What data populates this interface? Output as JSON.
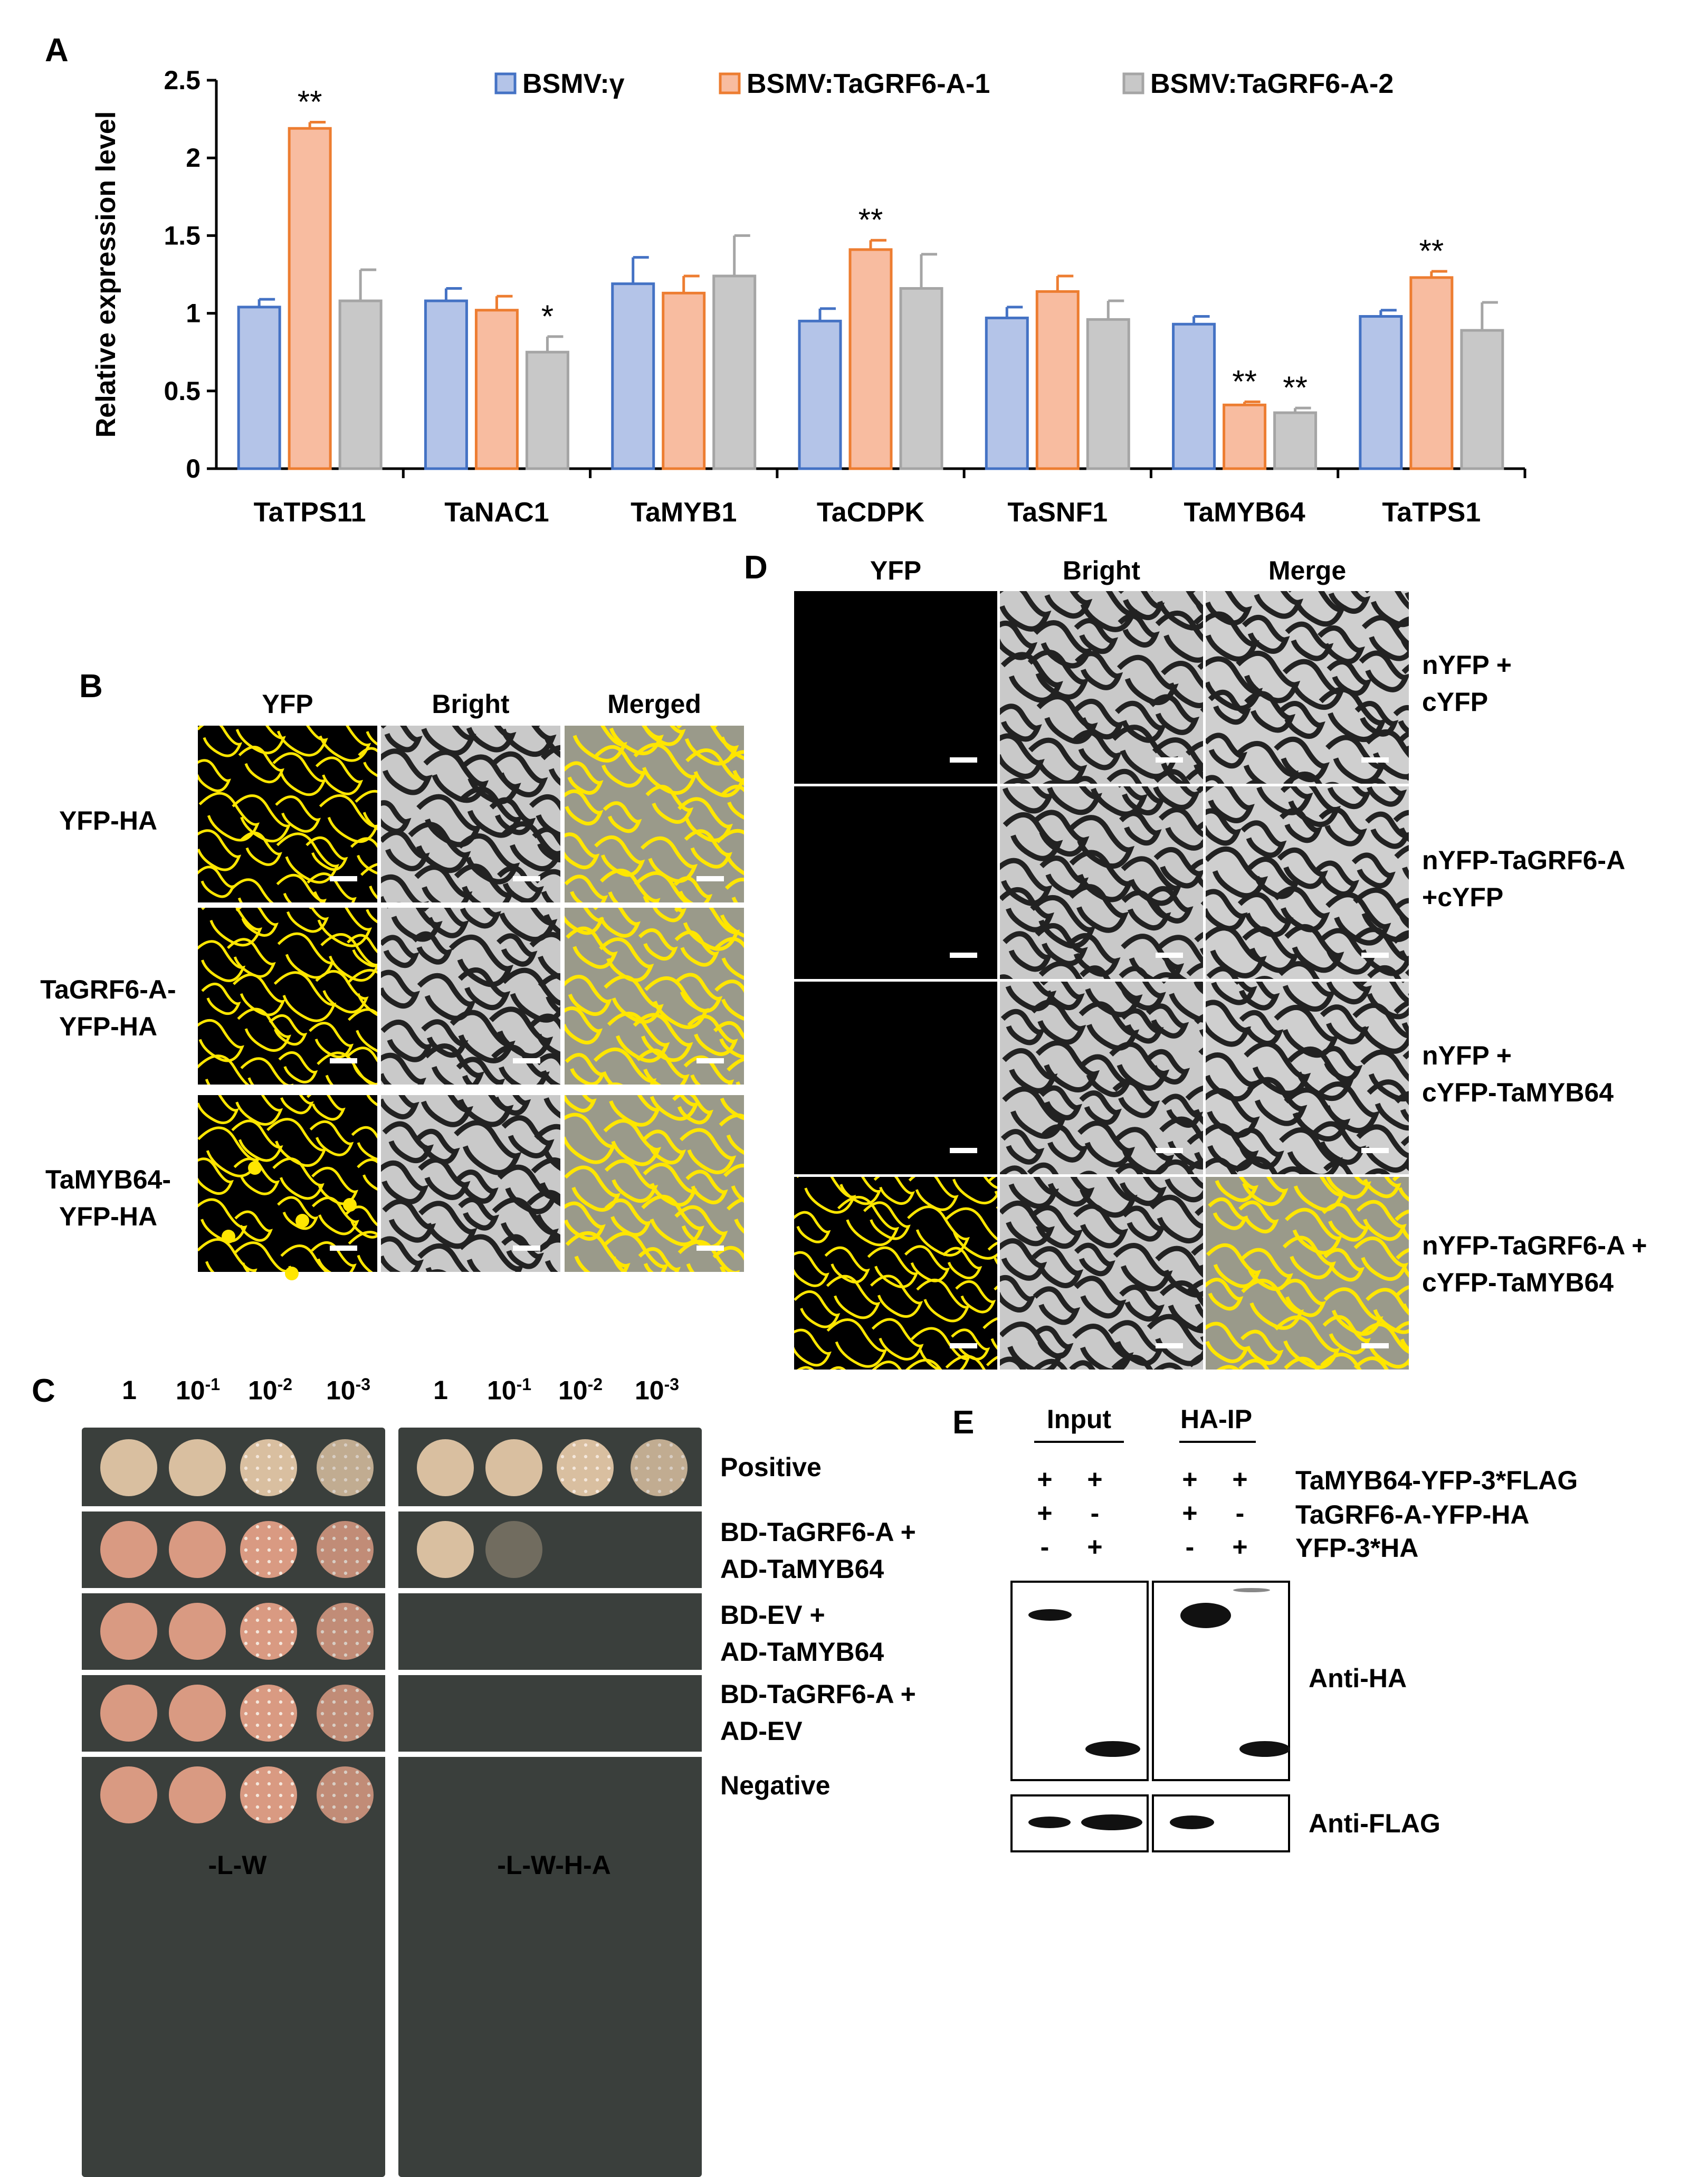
{
  "panels": {
    "A": "A",
    "B": "B",
    "C": "C",
    "D": "D",
    "E": "E"
  },
  "chart_data": {
    "type": "bar",
    "title": "",
    "xlabel": "",
    "ylabel": "Relative expression level",
    "ylim": [
      0,
      2.5
    ],
    "yticks": [
      "0",
      "0.5",
      "1",
      "1.5",
      "2",
      "2.5"
    ],
    "categories": [
      "TaTPS11",
      "TaNAC1",
      "TaMYB1",
      "TaCDPK",
      "TaSNF1",
      "TaMYB64",
      "TaTPS1"
    ],
    "series": [
      {
        "name": "BSMV:γ",
        "color": "#4472c4",
        "fill": "#b4c4e8",
        "values": [
          1.04,
          1.08,
          1.19,
          0.95,
          0.97,
          0.93,
          0.98
        ],
        "errors": [
          0.05,
          0.08,
          0.17,
          0.08,
          0.07,
          0.05,
          0.04
        ],
        "significance": [
          "",
          "",
          "",
          "",
          "",
          "",
          ""
        ]
      },
      {
        "name": "BSMV:TaGRF6-A-1",
        "color": "#ed7d31",
        "fill": "#f8bca0",
        "values": [
          2.19,
          1.02,
          1.13,
          1.41,
          1.14,
          0.41,
          1.23
        ],
        "errors": [
          0.04,
          0.09,
          0.11,
          0.06,
          0.1,
          0.02,
          0.04
        ],
        "significance": [
          "**",
          "",
          "",
          "**",
          "",
          "**",
          "**"
        ]
      },
      {
        "name": "BSMV:TaGRF6-A-2",
        "color": "#a5a5a5",
        "fill": "#c8c8c8",
        "values": [
          1.08,
          0.75,
          1.24,
          1.16,
          0.96,
          0.36,
          0.89
        ],
        "errors": [
          0.2,
          0.1,
          0.26,
          0.22,
          0.12,
          0.03,
          0.18
        ],
        "significance": [
          "",
          "*",
          "",
          "",
          "",
          "**",
          ""
        ]
      }
    ],
    "legend": "top"
  },
  "panelB": {
    "columns": [
      "YFP",
      "Bright",
      "Merged"
    ],
    "rows": [
      [
        "YFP-HA"
      ],
      [
        "TaGRF6-A-",
        "YFP-HA"
      ],
      [
        "TaMYB64-",
        "YFP-HA"
      ]
    ]
  },
  "panelC": {
    "dilutions": [
      "1",
      "10",
      "10",
      "10"
    ],
    "exponents": [
      "",
      "-1",
      "-2",
      "-3"
    ],
    "media": [
      "-L-W",
      "-L-W-H-A"
    ],
    "rows": [
      [
        "Positive"
      ],
      [
        "BD-TaGRF6-A +",
        "AD-TaMYB64"
      ],
      [
        "BD-EV +",
        "AD-TaMYB64"
      ],
      [
        "BD-TaGRF6-A +",
        "AD-EV"
      ],
      [
        "Negative"
      ]
    ]
  },
  "panelD": {
    "columns": [
      "YFP",
      "Bright",
      "Merge"
    ],
    "rows": [
      [
        "nYFP +",
        "cYFP"
      ],
      [
        "nYFP-TaGRF6-A",
        "+cYFP"
      ],
      [
        "nYFP +",
        "cYFP-TaMYB64"
      ],
      [
        "nYFP-TaGRF6-A +",
        "cYFP-TaMYB64"
      ]
    ]
  },
  "panelE": {
    "groups": [
      "Input",
      "HA-IP"
    ],
    "constructs": [
      "TaMYB64-YFP-3*FLAG",
      "TaGRF6-A-YFP-HA",
      "YFP-3*HA"
    ],
    "signs": [
      [
        "+",
        "+",
        "+",
        "+"
      ],
      [
        "+",
        "-",
        "+",
        "-"
      ],
      [
        "-",
        "+",
        "-",
        "+"
      ]
    ],
    "blots": [
      "Anti-HA",
      "Anti-FLAG"
    ]
  },
  "colors": {
    "yfp": "#ffe600",
    "plate": "#3a3f3c",
    "colony_tan": "#d9bfa0",
    "colony_pink": "#d99a82"
  }
}
